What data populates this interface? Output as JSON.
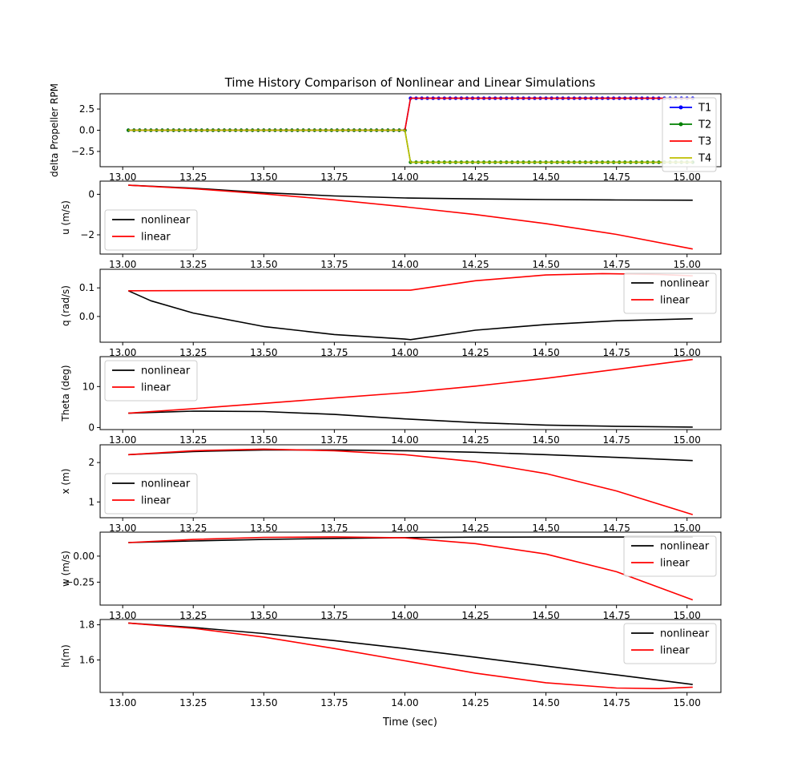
{
  "title": "Time History Comparison of Nonlinear and Linear Simulations",
  "xlabel": "Time (sec)",
  "xlim": [
    12.92,
    15.12
  ],
  "xticks": [
    "13.00",
    "13.25",
    "13.50",
    "13.75",
    "14.00",
    "14.25",
    "14.50",
    "14.75",
    "15.00"
  ],
  "chart_data": [
    {
      "type": "line",
      "ylabel": "delta Propeller RPM",
      "ylim": [
        -4.3,
        4.3
      ],
      "yticks": [
        2.5,
        0.0,
        -2.5
      ],
      "ytick_labels": [
        "2.5",
        "0.0",
        "−2.5"
      ],
      "legend_position": "top-right",
      "series": [
        {
          "name": "T1",
          "color": "#0000ff",
          "marker": true,
          "points": [
            [
              13.02,
              0.0
            ],
            [
              14.0,
              0.0
            ],
            [
              14.02,
              3.77
            ],
            [
              15.02,
              3.77
            ]
          ]
        },
        {
          "name": "T2",
          "color": "#008000",
          "marker": true,
          "points": [
            [
              13.02,
              0.0
            ],
            [
              14.0,
              0.0
            ],
            [
              14.02,
              -3.77
            ],
            [
              15.02,
              -3.77
            ]
          ]
        },
        {
          "name": "T3",
          "color": "#ff0000",
          "marker": false,
          "points": [
            [
              13.02,
              0.0
            ],
            [
              14.0,
              0.0
            ],
            [
              14.02,
              3.77
            ],
            [
              15.02,
              3.77
            ]
          ]
        },
        {
          "name": "T4",
          "color": "#bfbf00",
          "marker": false,
          "points": [
            [
              13.02,
              0.0
            ],
            [
              14.0,
              0.0
            ],
            [
              14.02,
              -3.77
            ],
            [
              15.02,
              -3.77
            ]
          ]
        }
      ]
    },
    {
      "type": "line",
      "ylabel": "u (m/s)",
      "ylim": [
        -2.95,
        0.65
      ],
      "yticks": [
        0,
        -2
      ],
      "ytick_labels": [
        "0",
        "−2"
      ],
      "legend_position": "bottom-left",
      "series": [
        {
          "name": "nonlinear",
          "color": "#000000",
          "points": [
            [
              13.02,
              0.45
            ],
            [
              13.25,
              0.3
            ],
            [
              13.5,
              0.08
            ],
            [
              13.75,
              -0.08
            ],
            [
              14.0,
              -0.18
            ],
            [
              14.25,
              -0.23
            ],
            [
              14.5,
              -0.26
            ],
            [
              14.75,
              -0.28
            ],
            [
              15.02,
              -0.29
            ]
          ]
        },
        {
          "name": "linear",
          "color": "#ff0000",
          "points": [
            [
              13.02,
              0.45
            ],
            [
              13.25,
              0.28
            ],
            [
              13.5,
              0.02
            ],
            [
              13.75,
              -0.27
            ],
            [
              14.0,
              -0.62
            ],
            [
              14.25,
              -1.0
            ],
            [
              14.5,
              -1.45
            ],
            [
              14.75,
              -1.98
            ],
            [
              15.02,
              -2.7
            ]
          ]
        }
      ]
    },
    {
      "type": "line",
      "ylabel": "q (rad/s)",
      "ylim": [
        -0.09,
        0.165
      ],
      "yticks": [
        0.1,
        0.0
      ],
      "ytick_labels": [
        "0.1",
        "0.0"
      ],
      "legend_position": "top-right",
      "series": [
        {
          "name": "nonlinear",
          "color": "#000000",
          "points": [
            [
              13.02,
              0.09
            ],
            [
              13.1,
              0.055
            ],
            [
              13.25,
              0.012
            ],
            [
              13.5,
              -0.035
            ],
            [
              13.75,
              -0.063
            ],
            [
              14.0,
              -0.079
            ],
            [
              14.02,
              -0.081
            ],
            [
              14.25,
              -0.048
            ],
            [
              14.5,
              -0.028
            ],
            [
              14.75,
              -0.015
            ],
            [
              15.02,
              -0.008
            ]
          ]
        },
        {
          "name": "linear",
          "color": "#ff0000",
          "points": [
            [
              13.02,
              0.09
            ],
            [
              13.5,
              0.091
            ],
            [
              14.0,
              0.092
            ],
            [
              14.02,
              0.092
            ],
            [
              14.25,
              0.125
            ],
            [
              14.5,
              0.145
            ],
            [
              14.7,
              0.15
            ],
            [
              14.9,
              0.147
            ],
            [
              15.02,
              0.142
            ]
          ]
        }
      ]
    },
    {
      "type": "line",
      "ylabel": "Theta (deg)",
      "ylim": [
        -0.5,
        17.3
      ],
      "yticks": [
        10,
        0
      ],
      "ytick_labels": [
        "10",
        "0"
      ],
      "legend_position": "top-left",
      "series": [
        {
          "name": "nonlinear",
          "color": "#000000",
          "points": [
            [
              13.02,
              3.5
            ],
            [
              13.25,
              4.0
            ],
            [
              13.5,
              3.9
            ],
            [
              13.75,
              3.2
            ],
            [
              14.0,
              2.1
            ],
            [
              14.25,
              1.2
            ],
            [
              14.5,
              0.6
            ],
            [
              14.75,
              0.3
            ],
            [
              15.02,
              0.1
            ]
          ]
        },
        {
          "name": "linear",
          "color": "#ff0000",
          "points": [
            [
              13.02,
              3.5
            ],
            [
              13.25,
              4.6
            ],
            [
              13.5,
              5.9
            ],
            [
              13.75,
              7.2
            ],
            [
              14.0,
              8.5
            ],
            [
              14.25,
              10.1
            ],
            [
              14.5,
              12.0
            ],
            [
              14.75,
              14.2
            ],
            [
              15.02,
              16.6
            ]
          ]
        }
      ]
    },
    {
      "type": "line",
      "ylabel": "x (m)",
      "ylim": [
        0.6,
        2.45
      ],
      "yticks": [
        2,
        1
      ],
      "ytick_labels": [
        "2",
        "1"
      ],
      "legend_position": "bottom-left",
      "series": [
        {
          "name": "nonlinear",
          "color": "#000000",
          "points": [
            [
              13.02,
              2.2
            ],
            [
              13.25,
              2.28
            ],
            [
              13.5,
              2.32
            ],
            [
              13.75,
              2.32
            ],
            [
              14.0,
              2.3
            ],
            [
              14.25,
              2.26
            ],
            [
              14.5,
              2.2
            ],
            [
              14.75,
              2.13
            ],
            [
              15.02,
              2.05
            ]
          ]
        },
        {
          "name": "linear",
          "color": "#ff0000",
          "points": [
            [
              13.02,
              2.2
            ],
            [
              13.25,
              2.3
            ],
            [
              13.5,
              2.34
            ],
            [
              13.75,
              2.3
            ],
            [
              14.0,
              2.2
            ],
            [
              14.25,
              2.02
            ],
            [
              14.5,
              1.72
            ],
            [
              14.75,
              1.28
            ],
            [
              15.02,
              0.68
            ]
          ]
        }
      ]
    },
    {
      "type": "line",
      "ylabel": "w (m/s)",
      "ylim": [
        -0.47,
        0.23
      ],
      "yticks": [
        0.0,
        -0.25
      ],
      "ytick_labels": [
        "0.00",
        "−0.25"
      ],
      "legend_position": "top-right",
      "series": [
        {
          "name": "nonlinear",
          "color": "#000000",
          "points": [
            [
              13.02,
              0.13
            ],
            [
              13.25,
              0.145
            ],
            [
              13.5,
              0.16
            ],
            [
              13.75,
              0.17
            ],
            [
              14.0,
              0.178
            ],
            [
              14.25,
              0.182
            ],
            [
              14.5,
              0.183
            ],
            [
              14.75,
              0.183
            ],
            [
              15.02,
              0.182
            ]
          ]
        },
        {
          "name": "linear",
          "color": "#ff0000",
          "points": [
            [
              13.02,
              0.13
            ],
            [
              13.25,
              0.16
            ],
            [
              13.5,
              0.18
            ],
            [
              13.75,
              0.185
            ],
            [
              14.0,
              0.175
            ],
            [
              14.25,
              0.12
            ],
            [
              14.5,
              0.02
            ],
            [
              14.75,
              -0.15
            ],
            [
              15.02,
              -0.42
            ]
          ]
        }
      ]
    },
    {
      "type": "line",
      "ylabel": "h(m)",
      "ylim": [
        1.415,
        1.83
      ],
      "yticks": [
        1.8,
        1.6
      ],
      "ytick_labels": [
        "1.8",
        "1.6"
      ],
      "legend_position": "top-right",
      "series": [
        {
          "name": "nonlinear",
          "color": "#000000",
          "points": [
            [
              13.02,
              1.81
            ],
            [
              13.25,
              1.785
            ],
            [
              13.5,
              1.75
            ],
            [
              13.75,
              1.71
            ],
            [
              14.0,
              1.665
            ],
            [
              14.25,
              1.615
            ],
            [
              14.5,
              1.565
            ],
            [
              14.75,
              1.515
            ],
            [
              15.02,
              1.46
            ]
          ]
        },
        {
          "name": "linear",
          "color": "#ff0000",
          "points": [
            [
              13.02,
              1.81
            ],
            [
              13.25,
              1.78
            ],
            [
              13.5,
              1.73
            ],
            [
              13.75,
              1.665
            ],
            [
              14.0,
              1.595
            ],
            [
              14.25,
              1.525
            ],
            [
              14.5,
              1.47
            ],
            [
              14.75,
              1.44
            ],
            [
              14.9,
              1.437
            ],
            [
              15.02,
              1.445
            ]
          ]
        }
      ]
    }
  ]
}
